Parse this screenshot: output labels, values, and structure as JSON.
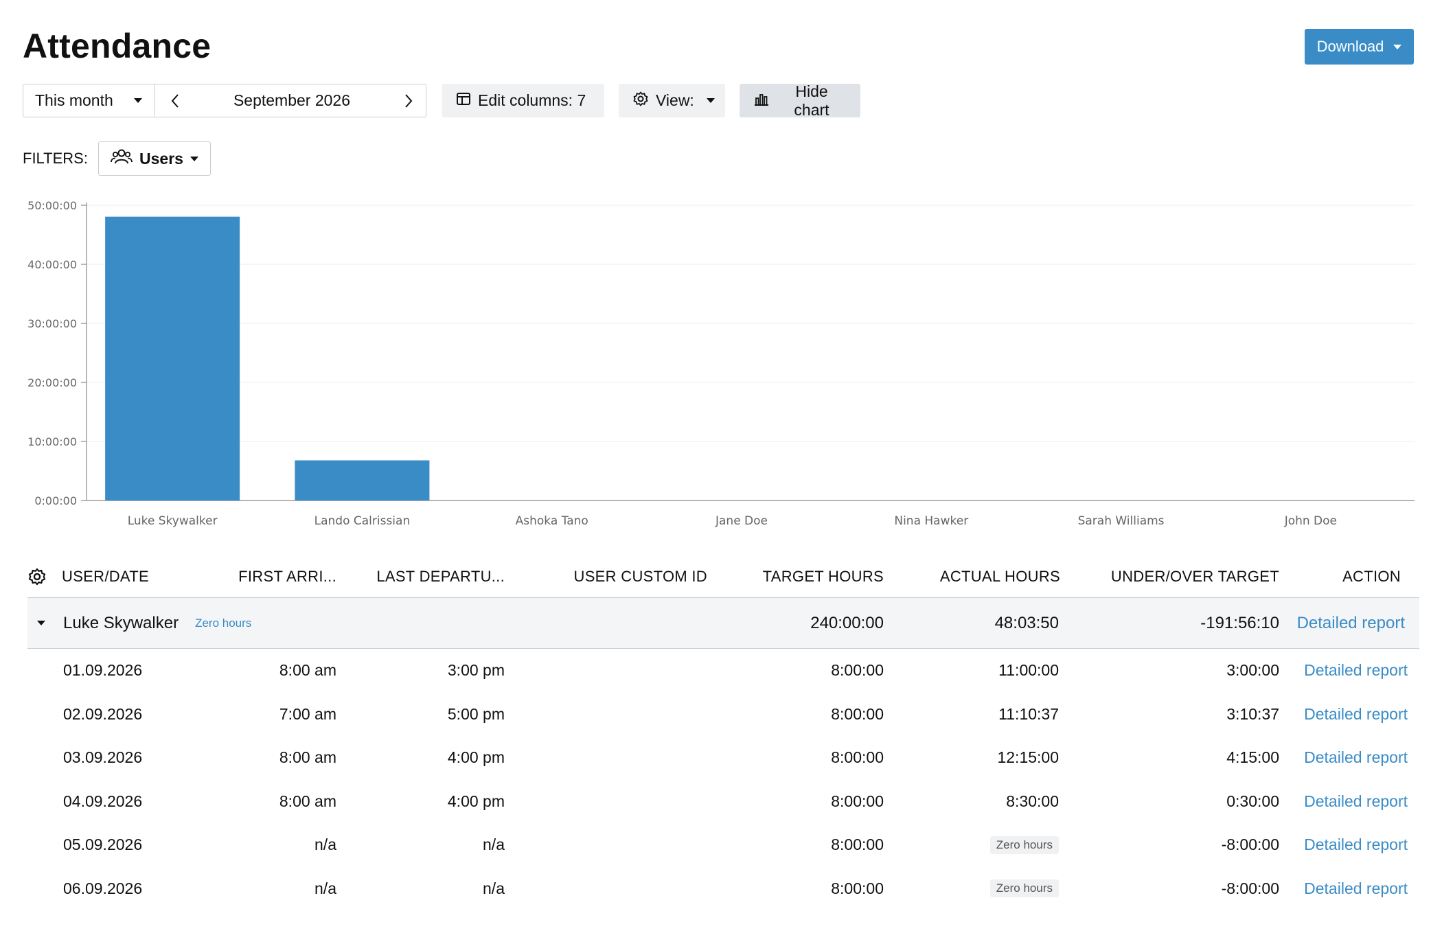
{
  "header": {
    "title": "Attendance",
    "download_label": "Download"
  },
  "toolbar": {
    "period_label": "This month",
    "period_value": "September 2026",
    "edit_columns_label": "Edit columns: 7",
    "view_label": "View:",
    "hide_chart_label": "Hide chart"
  },
  "filters": {
    "label": "FILTERS:",
    "users_label": "Users"
  },
  "chart_data": {
    "type": "bar",
    "categories": [
      "Luke Skywalker",
      "Lando Calrissian",
      "Ashoka Tano",
      "Jane Doe",
      "Nina Hawker",
      "Sarah Williams",
      "John Doe"
    ],
    "values_hours": [
      48.064,
      6.8,
      0,
      0,
      0,
      0,
      0
    ],
    "ylim_hours": [
      0,
      50
    ],
    "yticks": [
      "0:00:00",
      "10:00:00",
      "20:00:00",
      "30:00:00",
      "40:00:00",
      "50:00:00"
    ],
    "yticks_hours": [
      0,
      10,
      20,
      30,
      40,
      50
    ],
    "bar_color": "#3a8cc6",
    "grid": true
  },
  "table": {
    "columns": {
      "user_date": "USER/DATE",
      "first_arrival": "FIRST ARRI...",
      "last_departure": "LAST DEPARTU...",
      "user_custom_id": "USER CUSTOM ID",
      "target_hours": "TARGET HOURS",
      "actual_hours": "ACTUAL HOURS",
      "under_over": "UNDER/OVER TARGET",
      "action": "ACTION"
    },
    "group": {
      "user": "Luke Skywalker",
      "badge": "Zero hours",
      "target": "240:00:00",
      "actual": "48:03:50",
      "under_over": "-191:56:10",
      "action": "Detailed report"
    },
    "rows": [
      {
        "date": "01.09.2026",
        "first": "8:00 am",
        "last": "3:00 pm",
        "custom_id": "",
        "target": "8:00:00",
        "actual": "11:00:00",
        "under_over": "3:00:00",
        "action": "Detailed report"
      },
      {
        "date": "02.09.2026",
        "first": "7:00 am",
        "last": "5:00 pm",
        "custom_id": "",
        "target": "8:00:00",
        "actual": "11:10:37",
        "under_over": "3:10:37",
        "action": "Detailed report"
      },
      {
        "date": "03.09.2026",
        "first": "8:00 am",
        "last": "4:00 pm",
        "custom_id": "",
        "target": "8:00:00",
        "actual": "12:15:00",
        "under_over": "4:15:00",
        "action": "Detailed report"
      },
      {
        "date": "04.09.2026",
        "first": "8:00 am",
        "last": "4:00 pm",
        "custom_id": "",
        "target": "8:00:00",
        "actual": "8:30:00",
        "under_over": "0:30:00",
        "action": "Detailed report"
      },
      {
        "date": "05.09.2026",
        "first": "n/a",
        "last": "n/a",
        "custom_id": "",
        "target": "8:00:00",
        "actual": "Zero hours",
        "under_over": "-8:00:00",
        "action": "Detailed report"
      },
      {
        "date": "06.09.2026",
        "first": "n/a",
        "last": "n/a",
        "custom_id": "",
        "target": "8:00:00",
        "actual": "Zero hours",
        "under_over": "-8:00:00",
        "action": "Detailed report"
      }
    ]
  }
}
